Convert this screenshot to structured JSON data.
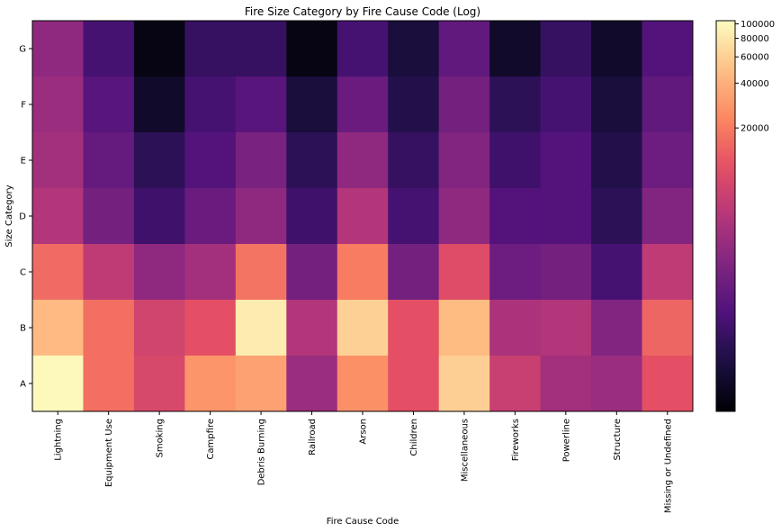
{
  "chart_data": {
    "type": "heatmap",
    "title": "Fire Size Category by Fire Cause Code (Log)",
    "xlabel": "Fire Cause Code",
    "ylabel": "Size Category",
    "x_categories": [
      "Lightning",
      "Equipment Use",
      "Smoking",
      "Campfire",
      "Debris Burning",
      "Railroad",
      "Arson",
      "Children",
      "Miscellaneous",
      "Fireworks",
      "Powerline",
      "Structure",
      "Missing or Undefined"
    ],
    "y_categories": [
      "G",
      "F",
      "E",
      "D",
      "C",
      "B",
      "A"
    ],
    "values": [
      [
        3000,
        1000,
        300,
        800,
        800,
        300,
        1000,
        500,
        1500,
        400,
        800,
        400,
        1200
      ],
      [
        3500,
        1300,
        400,
        1000,
        1300,
        500,
        1700,
        600,
        2000,
        700,
        1000,
        500,
        1500
      ],
      [
        4000,
        1600,
        700,
        1200,
        2200,
        700,
        3000,
        800,
        2500,
        900,
        1200,
        600,
        1800
      ],
      [
        5000,
        2000,
        900,
        1700,
        3000,
        900,
        5000,
        1000,
        3000,
        1200,
        1200,
        700,
        2500
      ],
      [
        16000,
        6000,
        3000,
        4000,
        18000,
        2000,
        20000,
        2000,
        10000,
        1800,
        2000,
        1000,
        6000
      ],
      [
        46000,
        17000,
        8000,
        11000,
        85000,
        5000,
        61000,
        11000,
        47000,
        4500,
        5000,
        2500,
        15000
      ],
      [
        100000,
        17000,
        9000,
        28000,
        33000,
        3500,
        26000,
        11000,
        60000,
        7000,
        4000,
        3500,
        11000
      ]
    ],
    "colormap": "magma",
    "scale": "log",
    "colorbar_ticks": [
      20000,
      40000,
      60000,
      80000,
      100000
    ],
    "colorbar_range": [
      250,
      105000
    ]
  }
}
